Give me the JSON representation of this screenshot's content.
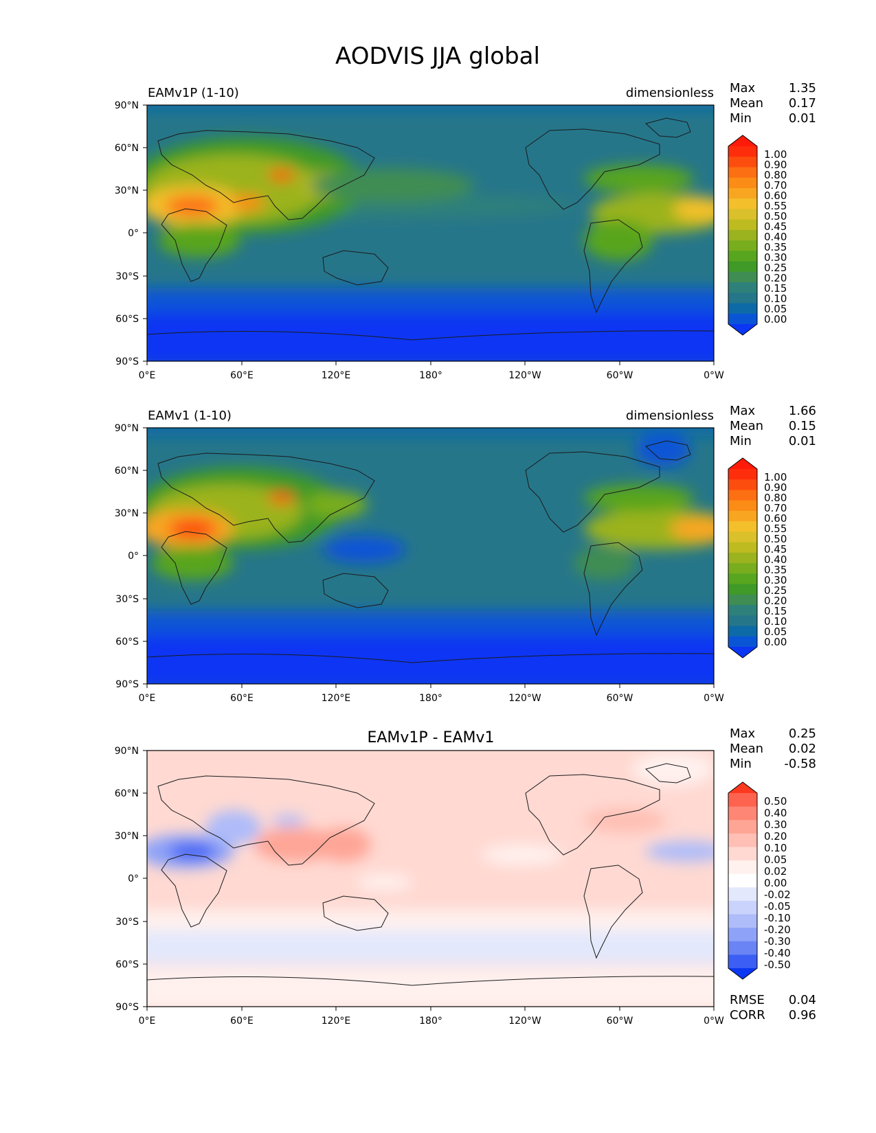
{
  "title": "AODVIS JJA global",
  "colors": {
    "frame": "#000000",
    "coast": "#1a1a1a",
    "seq": [
      "#0b36f3",
      "#0a55d6",
      "#0e6aa6",
      "#26768a",
      "#2e807a",
      "#3f8d52",
      "#3f9a28",
      "#58a51f",
      "#78ad1e",
      "#9bb31f",
      "#bdbb20",
      "#dac02a",
      "#f3c02b",
      "#f8a621",
      "#fb8c16",
      "#fc6f12",
      "#fd4d0e",
      "#fe2d0c",
      "#ff1a0a"
    ],
    "div": [
      "#0b36f3",
      "#3d5ef4",
      "#6a84f5",
      "#8ea3f7",
      "#aebcf9",
      "#c9d3fb",
      "#e3e8fc",
      "#ffffff",
      "#fff1ee",
      "#ffd9d2",
      "#ffbfb4",
      "#fea596",
      "#fe8674",
      "#fe6350",
      "#fd3a20"
    ]
  },
  "axes": {
    "lat_ticks": [
      "90°N",
      "60°N",
      "30°N",
      "0°",
      "30°S",
      "60°S",
      "90°S"
    ],
    "lon_ticks": [
      "0°E",
      "60°E",
      "120°E",
      "180°",
      "120°W",
      "60°W",
      "0°W"
    ]
  },
  "chart_data": [
    {
      "type": "heatmap",
      "left_title": "EAMv1P (1-10)",
      "center_title": "",
      "right_title": "dimensionless",
      "stats": [
        {
          "label": "Max",
          "value": "1.35"
        },
        {
          "label": "Mean",
          "value": "0.17"
        },
        {
          "label": "Min",
          "value": "0.01"
        }
      ],
      "colorbar_levels": [
        "1.00",
        "0.90",
        "0.80",
        "0.70",
        "0.60",
        "0.55",
        "0.50",
        "0.45",
        "0.40",
        "0.35",
        "0.30",
        "0.25",
        "0.20",
        "0.15",
        "0.10",
        "0.05",
        "0.00"
      ],
      "colormap": "seq",
      "extra_stats": []
    },
    {
      "type": "heatmap",
      "left_title": "EAMv1 (1-10)",
      "center_title": "",
      "right_title": "dimensionless",
      "stats": [
        {
          "label": "Max",
          "value": "1.66"
        },
        {
          "label": "Mean",
          "value": "0.15"
        },
        {
          "label": "Min",
          "value": "0.01"
        }
      ],
      "colorbar_levels": [
        "1.00",
        "0.90",
        "0.80",
        "0.70",
        "0.60",
        "0.55",
        "0.50",
        "0.45",
        "0.40",
        "0.35",
        "0.30",
        "0.25",
        "0.20",
        "0.15",
        "0.10",
        "0.05",
        "0.00"
      ],
      "colormap": "seq",
      "extra_stats": []
    },
    {
      "type": "heatmap",
      "left_title": "",
      "center_title": "EAMv1P - EAMv1",
      "right_title": "",
      "stats": [
        {
          "label": "Max",
          "value": "0.25"
        },
        {
          "label": "Mean",
          "value": "0.02"
        },
        {
          "label": "Min",
          "value": "-0.58"
        }
      ],
      "colorbar_levels": [
        "0.50",
        "0.40",
        "0.30",
        "0.20",
        "0.10",
        "0.05",
        "0.02",
        "0.00",
        "-0.02",
        "-0.05",
        "-0.10",
        "-0.20",
        "-0.30",
        "-0.40",
        "-0.50"
      ],
      "colormap": "div",
      "extra_stats": [
        {
          "label": "RMSE",
          "value": "0.04"
        },
        {
          "label": "CORR",
          "value": "0.96"
        }
      ]
    }
  ]
}
